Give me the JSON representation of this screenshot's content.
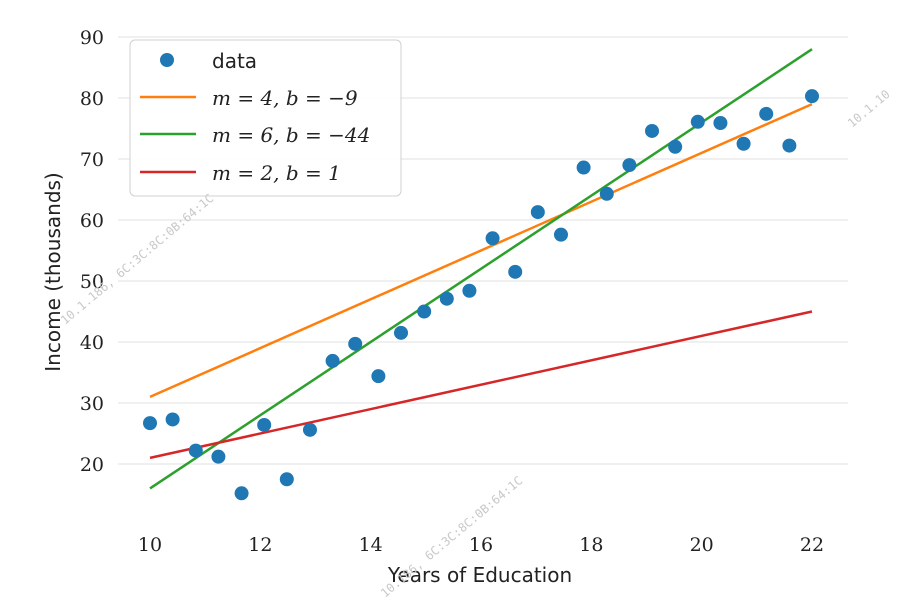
{
  "chart_data": {
    "type": "scatter",
    "xlabel": "Years of Education",
    "ylabel": "Income (thousands)",
    "xlim": [
      10,
      22
    ],
    "ylim": [
      10,
      90
    ],
    "xticks": [
      10,
      12,
      14,
      16,
      18,
      20,
      22
    ],
    "yticks": [
      20,
      30,
      40,
      50,
      60,
      70,
      80,
      90
    ],
    "grid": "horizontal",
    "legend_position": "top-left",
    "data": {
      "name": "data",
      "color": "#1f77b4",
      "x": [
        10.0,
        10.41,
        10.83,
        11.24,
        11.66,
        12.07,
        12.48,
        12.9,
        13.31,
        13.72,
        14.14,
        14.55,
        14.97,
        15.38,
        15.79,
        16.21,
        16.62,
        17.03,
        17.45,
        17.86,
        18.28,
        18.69,
        19.1,
        19.52,
        19.93,
        20.34,
        20.76,
        21.17,
        21.59,
        22.0
      ],
      "y": [
        26.7,
        27.3,
        22.2,
        21.2,
        15.2,
        26.4,
        17.5,
        25.6,
        36.9,
        39.7,
        34.4,
        41.5,
        45.0,
        47.1,
        48.4,
        57.0,
        51.5,
        61.3,
        57.6,
        68.6,
        64.3,
        69.0,
        74.6,
        72.0,
        76.1,
        75.9,
        72.5,
        77.4,
        72.2,
        80.3
      ]
    },
    "lines": [
      {
        "label": "m = 4, b = −9",
        "m": 4,
        "b": -9,
        "color": "#ff7f0e",
        "x_range": [
          10,
          22
        ]
      },
      {
        "label": "m = 6, b = −44",
        "m": 6,
        "b": -44,
        "color": "#2ca02c",
        "x_range": [
          10,
          22
        ]
      },
      {
        "label": "m = 2, b = 1",
        "m": 2,
        "b": 1,
        "color": "#d62728",
        "x_range": [
          10,
          22
        ]
      }
    ]
  },
  "watermarks": [
    "10.1.186, 6C:3C:8C:0B:64:1C",
    "10.186, 6C:3C:8C:0B:64:1C",
    "10.1.10"
  ]
}
